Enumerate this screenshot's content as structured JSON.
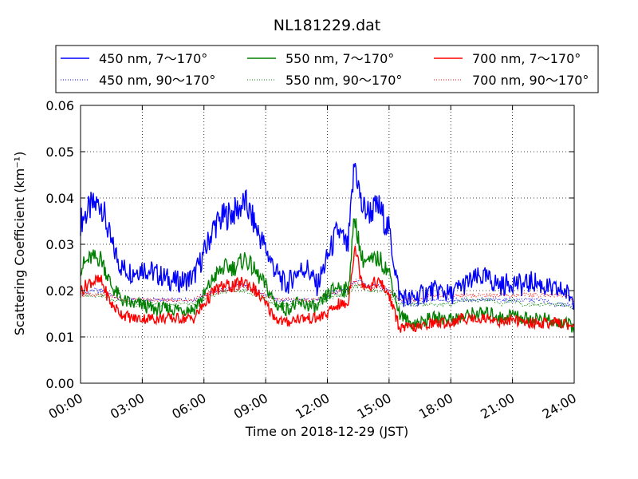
{
  "chart_data": {
    "type": "line",
    "title": "NL181229.dat",
    "xlabel": "Time on 2018-12-29 (JST)",
    "ylabel": "Scattering Coefficient (km⁻¹)",
    "xlim": [
      "00:00",
      "24:00"
    ],
    "ylim": [
      0,
      0.06
    ],
    "x_ticks": [
      "00:00",
      "03:00",
      "06:00",
      "09:00",
      "12:00",
      "15:00",
      "18:00",
      "21:00",
      "24:00"
    ],
    "y_ticks": [
      "0.00",
      "0.01",
      "0.02",
      "0.03",
      "0.04",
      "0.05",
      "0.06"
    ],
    "grid": true,
    "legend": {
      "placement": "top",
      "columns": 3
    },
    "x": [
      "00:00",
      "00:30",
      "01:00",
      "01:30",
      "02:00",
      "02:30",
      "03:00",
      "03:30",
      "04:00",
      "04:30",
      "05:00",
      "05:30",
      "06:00",
      "06:30",
      "07:00",
      "07:30",
      "08:00",
      "08:30",
      "09:00",
      "09:30",
      "10:00",
      "10:30",
      "11:00",
      "11:30",
      "12:00",
      "12:30",
      "13:00",
      "13:20",
      "13:40",
      "14:00",
      "14:30",
      "15:00",
      "15:30",
      "16:00",
      "16:30",
      "17:00",
      "17:30",
      "18:00",
      "18:30",
      "19:00",
      "19:30",
      "20:00",
      "20:30",
      "21:00",
      "21:30",
      "22:00",
      "22:30",
      "23:00",
      "23:30",
      "24:00"
    ],
    "series": [
      {
        "name": "450 nm, 7～170°",
        "color": "#0000ff",
        "style": "solid",
        "values": [
          0.035,
          0.038,
          0.039,
          0.03,
          0.025,
          0.024,
          0.025,
          0.024,
          0.023,
          0.022,
          0.022,
          0.023,
          0.028,
          0.034,
          0.036,
          0.037,
          0.039,
          0.034,
          0.029,
          0.024,
          0.021,
          0.024,
          0.025,
          0.021,
          0.027,
          0.033,
          0.029,
          0.048,
          0.038,
          0.037,
          0.038,
          0.033,
          0.019,
          0.018,
          0.019,
          0.02,
          0.02,
          0.019,
          0.021,
          0.022,
          0.023,
          0.022,
          0.021,
          0.022,
          0.021,
          0.022,
          0.021,
          0.02,
          0.02,
          0.018
        ]
      },
      {
        "name": "450 nm, 90～170°",
        "color": "#0000ff",
        "style": "dotted",
        "values": [
          0.019,
          0.02,
          0.02,
          0.019,
          0.018,
          0.018,
          0.018,
          0.018,
          0.018,
          0.018,
          0.018,
          0.018,
          0.019,
          0.02,
          0.02,
          0.021,
          0.021,
          0.02,
          0.019,
          0.018,
          0.018,
          0.018,
          0.018,
          0.018,
          0.019,
          0.02,
          0.02,
          0.022,
          0.022,
          0.021,
          0.021,
          0.02,
          0.018,
          0.017,
          0.017,
          0.018,
          0.018,
          0.018,
          0.018,
          0.018,
          0.018,
          0.018,
          0.018,
          0.018,
          0.018,
          0.018,
          0.018,
          0.017,
          0.017,
          0.017
        ]
      },
      {
        "name": "550 nm, 7～170°",
        "color": "#008000",
        "style": "solid",
        "values": [
          0.025,
          0.027,
          0.027,
          0.021,
          0.018,
          0.017,
          0.017,
          0.016,
          0.016,
          0.016,
          0.016,
          0.016,
          0.019,
          0.023,
          0.025,
          0.025,
          0.027,
          0.024,
          0.021,
          0.017,
          0.016,
          0.017,
          0.017,
          0.016,
          0.019,
          0.021,
          0.02,
          0.036,
          0.027,
          0.026,
          0.027,
          0.024,
          0.015,
          0.013,
          0.013,
          0.014,
          0.014,
          0.014,
          0.014,
          0.015,
          0.015,
          0.015,
          0.014,
          0.015,
          0.014,
          0.014,
          0.014,
          0.013,
          0.013,
          0.012
        ]
      },
      {
        "name": "550 nm, 90～170°",
        "color": "#008000",
        "style": "dotted",
        "values": [
          0.019,
          0.019,
          0.019,
          0.018,
          0.018,
          0.017,
          0.017,
          0.017,
          0.017,
          0.017,
          0.017,
          0.017,
          0.018,
          0.019,
          0.02,
          0.02,
          0.02,
          0.019,
          0.018,
          0.017,
          0.017,
          0.017,
          0.017,
          0.017,
          0.018,
          0.019,
          0.019,
          0.021,
          0.021,
          0.02,
          0.02,
          0.019,
          0.017,
          0.017,
          0.017,
          0.017,
          0.017,
          0.017,
          0.018,
          0.018,
          0.018,
          0.018,
          0.017,
          0.018,
          0.017,
          0.017,
          0.017,
          0.017,
          0.017,
          0.016
        ]
      },
      {
        "name": "700 nm, 7～170°",
        "color": "#ff0000",
        "style": "solid",
        "values": [
          0.02,
          0.022,
          0.022,
          0.017,
          0.015,
          0.014,
          0.014,
          0.014,
          0.014,
          0.014,
          0.014,
          0.014,
          0.017,
          0.02,
          0.021,
          0.021,
          0.022,
          0.02,
          0.017,
          0.014,
          0.013,
          0.014,
          0.014,
          0.014,
          0.015,
          0.017,
          0.017,
          0.03,
          0.022,
          0.021,
          0.022,
          0.019,
          0.012,
          0.012,
          0.012,
          0.013,
          0.013,
          0.013,
          0.014,
          0.014,
          0.014,
          0.014,
          0.013,
          0.014,
          0.013,
          0.013,
          0.013,
          0.013,
          0.013,
          0.012
        ]
      },
      {
        "name": "700 nm, 90～170°",
        "color": "#ff0000",
        "style": "dotted",
        "values": [
          0.019,
          0.019,
          0.019,
          0.019,
          0.018,
          0.018,
          0.018,
          0.018,
          0.018,
          0.018,
          0.018,
          0.018,
          0.019,
          0.02,
          0.02,
          0.02,
          0.021,
          0.02,
          0.019,
          0.018,
          0.018,
          0.018,
          0.018,
          0.018,
          0.019,
          0.02,
          0.02,
          0.022,
          0.021,
          0.021,
          0.021,
          0.02,
          0.018,
          0.018,
          0.018,
          0.019,
          0.019,
          0.019,
          0.019,
          0.019,
          0.019,
          0.019,
          0.019,
          0.019,
          0.019,
          0.019,
          0.019,
          0.019,
          0.019,
          0.018
        ]
      }
    ]
  }
}
